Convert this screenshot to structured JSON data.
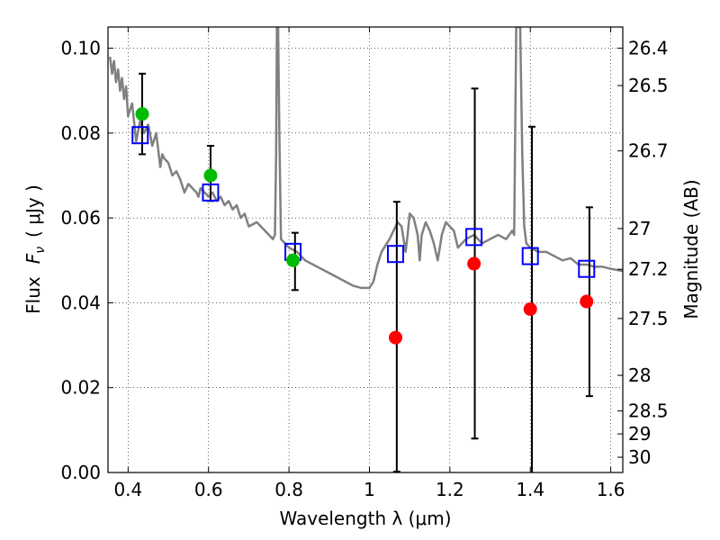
{
  "chart_data": {
    "type": "scatter",
    "xlabel": "Wavelength  λ (μm)",
    "ylabel_prefix": "Flux",
    "ylabel_symbol": "F",
    "ylabel_subscript": "ν",
    "ylabel_unit": "( μJy )",
    "y2label": "Magnitude (AB)",
    "xlim": [
      0.35,
      1.63
    ],
    "ylim": [
      0.0,
      0.105
    ],
    "grid": true,
    "x_ticks": [
      0.4,
      0.6,
      0.8,
      1.0,
      1.2,
      1.4,
      1.6
    ],
    "x_tick_labels": [
      "0.4",
      "0.6",
      "0.8",
      "1",
      "1.2",
      "1.4",
      "1.6"
    ],
    "y_ticks": [
      0.0,
      0.02,
      0.04,
      0.06,
      0.08,
      0.1
    ],
    "y_tick_labels": [
      "0.00",
      "0.02",
      "0.04",
      "0.06",
      "0.08",
      "0.10"
    ],
    "y2_ticks": [
      {
        "label": "26.4",
        "flux": 0.1
      },
      {
        "label": "26.5",
        "flux": 0.0912
      },
      {
        "label": "26.7",
        "flux": 0.0758
      },
      {
        "label": "27",
        "flux": 0.0575
      },
      {
        "label": "27.2",
        "flux": 0.0479
      },
      {
        "label": "27.5",
        "flux": 0.0363
      },
      {
        "label": "28",
        "flux": 0.0229
      },
      {
        "label": "28.5",
        "flux": 0.0145
      },
      {
        "label": "29",
        "flux": 0.0091
      },
      {
        "label": "30",
        "flux": 0.0036
      }
    ],
    "colors": {
      "sed": "#808080",
      "model_box": "#0000ff",
      "green_points": "#00bb00",
      "red_points": "#ff0000",
      "error_bars": "#000000"
    },
    "sed_curve": {
      "x": [
        0.355,
        0.36,
        0.365,
        0.37,
        0.375,
        0.38,
        0.385,
        0.39,
        0.395,
        0.4,
        0.41,
        0.42,
        0.43,
        0.44,
        0.45,
        0.46,
        0.47,
        0.48,
        0.485,
        0.49,
        0.5,
        0.51,
        0.52,
        0.53,
        0.54,
        0.55,
        0.56,
        0.57,
        0.575,
        0.58,
        0.59,
        0.6,
        0.61,
        0.62,
        0.63,
        0.64,
        0.65,
        0.66,
        0.67,
        0.68,
        0.69,
        0.7,
        0.72,
        0.74,
        0.76,
        0.765,
        0.768,
        0.77,
        0.773,
        0.776,
        0.78,
        0.8,
        0.82,
        0.84,
        0.86,
        0.88,
        0.9,
        0.92,
        0.94,
        0.96,
        0.98,
        1.0,
        1.01,
        1.02,
        1.03,
        1.05,
        1.07,
        1.08,
        1.09,
        1.095,
        1.1,
        1.11,
        1.12,
        1.125,
        1.13,
        1.14,
        1.15,
        1.16,
        1.17,
        1.18,
        1.19,
        1.2,
        1.21,
        1.22,
        1.24,
        1.26,
        1.28,
        1.3,
        1.32,
        1.34,
        1.355,
        1.36,
        1.365,
        1.37,
        1.375,
        1.38,
        1.385,
        1.39,
        1.4,
        1.42,
        1.44,
        1.46,
        1.48,
        1.5,
        1.52,
        1.54,
        1.56,
        1.58,
        1.6,
        1.63
      ],
      "y": [
        0.098,
        0.094,
        0.097,
        0.092,
        0.095,
        0.09,
        0.093,
        0.088,
        0.091,
        0.084,
        0.087,
        0.078,
        0.083,
        0.08,
        0.082,
        0.077,
        0.08,
        0.072,
        0.075,
        0.074,
        0.073,
        0.07,
        0.071,
        0.069,
        0.066,
        0.068,
        0.067,
        0.066,
        0.065,
        0.067,
        0.066,
        0.065,
        0.066,
        0.064,
        0.065,
        0.063,
        0.064,
        0.062,
        0.063,
        0.06,
        0.061,
        0.058,
        0.059,
        0.057,
        0.055,
        0.056,
        0.075,
        0.105,
        0.105,
        0.08,
        0.055,
        0.053,
        0.052,
        0.05,
        0.049,
        0.048,
        0.047,
        0.046,
        0.045,
        0.044,
        0.0435,
        0.0435,
        0.045,
        0.049,
        0.052,
        0.055,
        0.059,
        0.058,
        0.052,
        0.056,
        0.061,
        0.06,
        0.056,
        0.05,
        0.056,
        0.059,
        0.057,
        0.054,
        0.05,
        0.056,
        0.059,
        0.058,
        0.057,
        0.053,
        0.055,
        0.056,
        0.054,
        0.055,
        0.056,
        0.055,
        0.057,
        0.056,
        0.105,
        0.105,
        0.105,
        0.075,
        0.058,
        0.054,
        0.053,
        0.052,
        0.052,
        0.051,
        0.05,
        0.0505,
        0.049,
        0.049,
        0.0485,
        0.0485,
        0.048,
        0.0475
      ]
    },
    "series": [
      {
        "marker": "open-square",
        "x": [
          0.43,
          0.605,
          0.81,
          1.065,
          1.26,
          1.4,
          1.54
        ],
        "y": [
          0.0795,
          0.066,
          0.052,
          0.0515,
          0.0555,
          0.051,
          0.048
        ]
      },
      {
        "marker": "filled-circle-green",
        "x": [
          0.435,
          0.605,
          0.81
        ],
        "y": [
          0.0845,
          0.07,
          0.05
        ]
      },
      {
        "marker": "filled-circle-red",
        "x": [
          1.065,
          1.26,
          1.4,
          1.54
        ],
        "y": [
          0.0318,
          0.0492,
          0.0385,
          0.0403
        ]
      }
    ],
    "error_bars": [
      {
        "x": 0.435,
        "low": 0.075,
        "high": 0.094
      },
      {
        "x": 0.605,
        "low": 0.064,
        "high": 0.077
      },
      {
        "x": 0.815,
        "low": 0.043,
        "high": 0.0565
      },
      {
        "x": 1.068,
        "low": 0.0002,
        "high": 0.0638
      },
      {
        "x": 1.262,
        "low": 0.008,
        "high": 0.0905
      },
      {
        "x": 1.404,
        "low": -0.001,
        "high": 0.0815
      },
      {
        "x": 1.547,
        "low": 0.018,
        "high": 0.0625
      }
    ]
  }
}
